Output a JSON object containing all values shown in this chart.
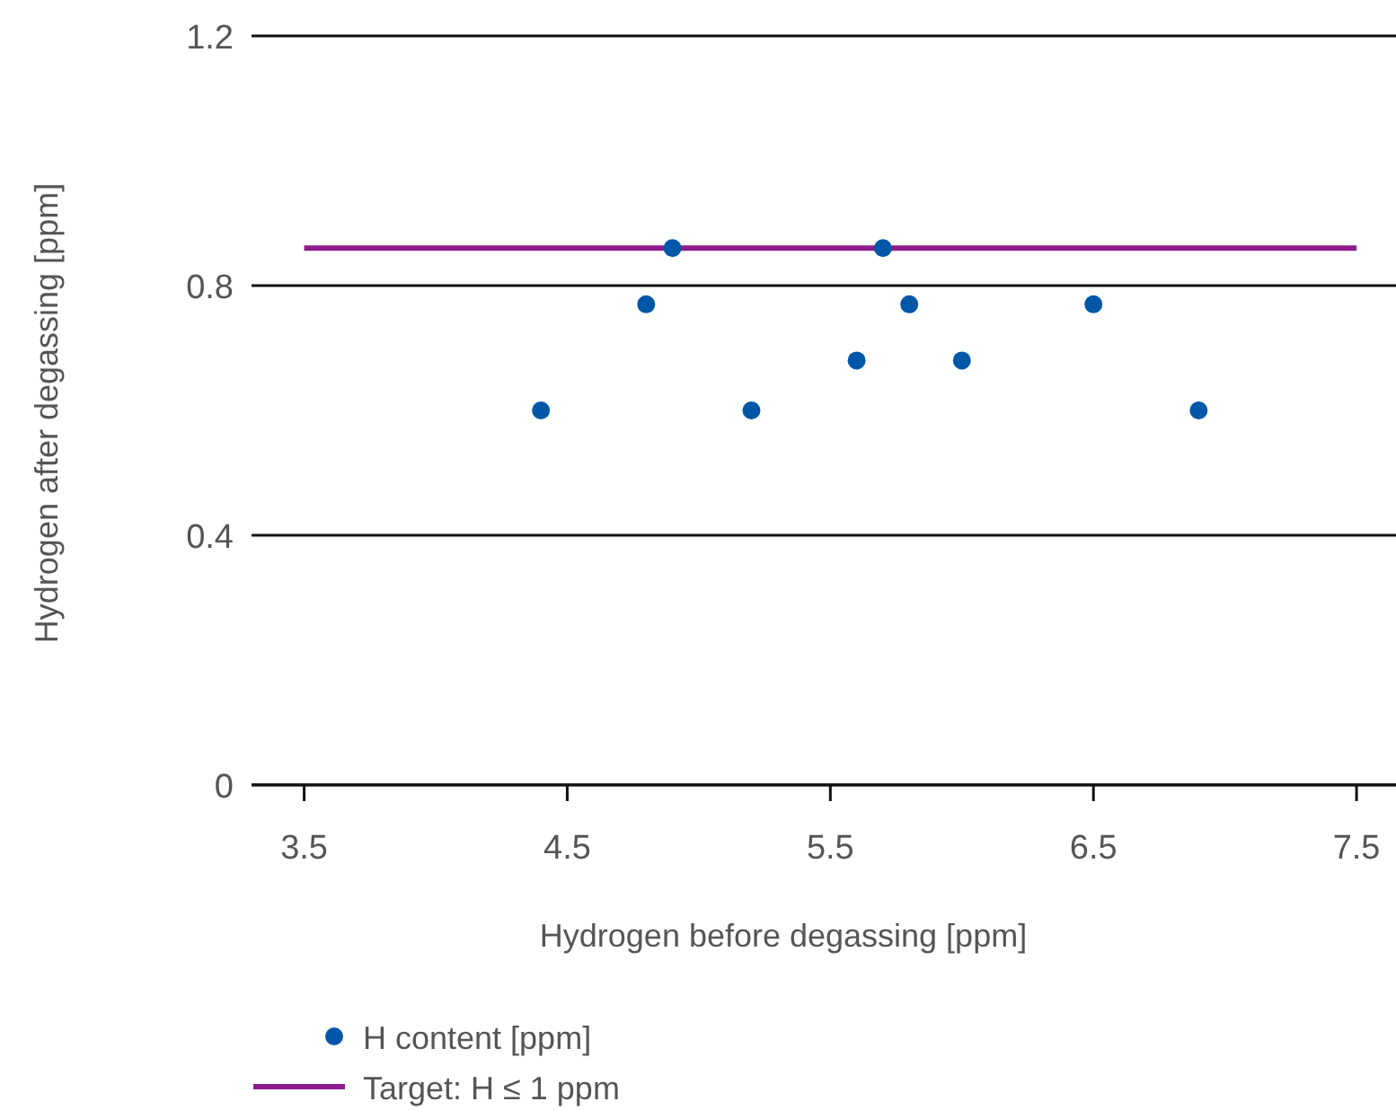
{
  "chart_data": {
    "type": "scatter",
    "xlabel": "Hydrogen before degassing [ppm]",
    "ylabel": "Hydrogen after degassing [ppm]",
    "x": [
      4.4,
      4.8,
      4.9,
      5.2,
      5.6,
      5.7,
      5.8,
      6.0,
      6.5,
      6.9
    ],
    "series": [
      {
        "name": "H content [ppm]",
        "color": "#0057a8",
        "values": [
          0.6,
          0.77,
          0.86,
          0.6,
          0.68,
          0.86,
          0.77,
          0.68,
          0.77,
          0.6
        ]
      }
    ],
    "ref_lines": [
      {
        "axis": "y",
        "value": 0.86,
        "label": "Target: H ≤ 1 ppm",
        "color": "#8e1b8c"
      }
    ],
    "xlim": [
      3.3,
      7.65
    ],
    "ylim": [
      0,
      1.2
    ],
    "xticks": [
      3.5,
      4.5,
      5.5,
      6.5,
      7.5
    ],
    "yticks": [
      0,
      0.4,
      0.8,
      1.2
    ],
    "grid": "y",
    "legend": "bottom",
    "marker": "circle"
  }
}
